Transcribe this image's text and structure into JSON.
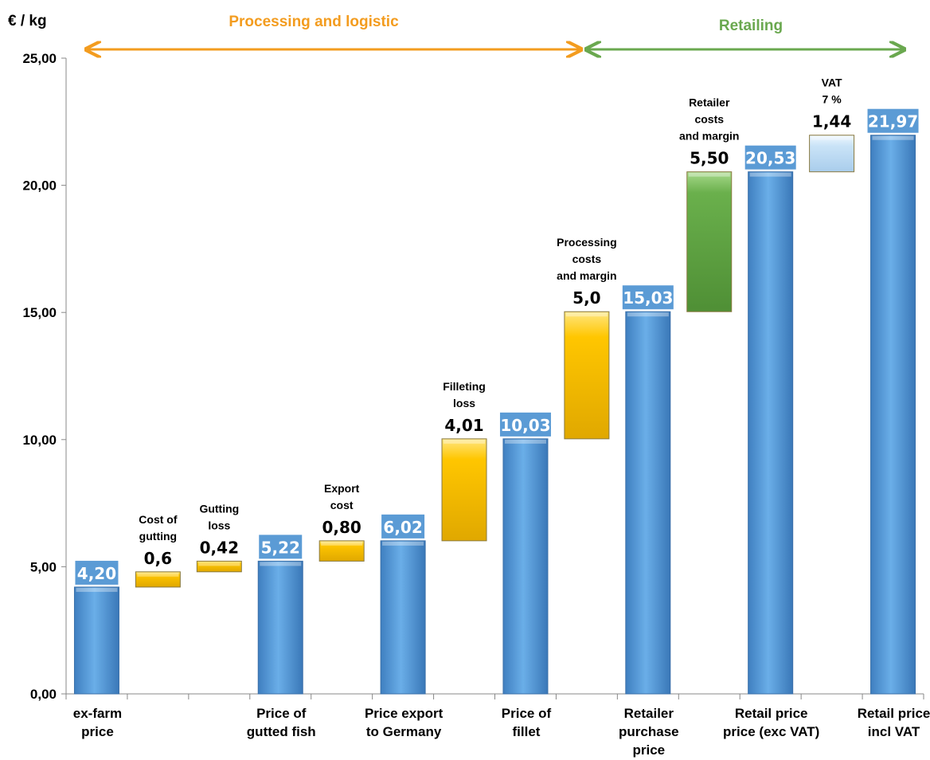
{
  "chart_data": {
    "type": "bar",
    "subtype": "waterfall",
    "ylabel": "€ / kg",
    "ylim": [
      0,
      25
    ],
    "yticks": [
      "0,00",
      "5,00",
      "10,00",
      "15,00",
      "20,00",
      "25,00"
    ],
    "grid": false,
    "sections": [
      {
        "label": "Processing and logistic",
        "color": "#f39c1f"
      },
      {
        "label": "Retailing",
        "color": "#6aa84f"
      }
    ],
    "categories": [
      "ex-farm price",
      "",
      "",
      "Price of gutted fish",
      "",
      "Price export to Germany",
      "",
      "Price of fillet",
      "",
      "Retailer purchase price",
      "",
      "Retail price price (exc VAT)",
      "",
      "Retail price incl VAT"
    ],
    "category_lines": [
      [
        "ex-farm",
        "price"
      ],
      [],
      [],
      [
        "Price of",
        "gutted fish"
      ],
      [],
      [
        "Price export",
        "to Germany"
      ],
      [],
      [
        "Price of",
        "fillet"
      ],
      [],
      [
        "Retailer",
        "purchase",
        "price"
      ],
      [],
      [
        "Retail price",
        "price (exc VAT)"
      ],
      [],
      [
        "Retail price",
        "incl VAT"
      ]
    ],
    "bars": [
      {
        "kind": "total",
        "base": 0,
        "top": 4.2,
        "label": "4,20",
        "note": [],
        "color": "#5ba3e0"
      },
      {
        "kind": "step",
        "base": 4.2,
        "top": 4.8,
        "label": "0,6",
        "note": [
          "Cost of",
          "gutting"
        ],
        "color": "#ffc600"
      },
      {
        "kind": "step",
        "base": 4.8,
        "top": 5.22,
        "label": "0,42",
        "note": [
          "Gutting",
          "loss"
        ],
        "color": "#ffc600"
      },
      {
        "kind": "total",
        "base": 0,
        "top": 5.22,
        "label": "5,22",
        "note": [],
        "color": "#5ba3e0"
      },
      {
        "kind": "step",
        "base": 5.22,
        "top": 6.02,
        "label": "0,80",
        "note": [
          "Export",
          "cost"
        ],
        "color": "#ffc600"
      },
      {
        "kind": "total",
        "base": 0,
        "top": 6.02,
        "label": "6,02",
        "note": [],
        "color": "#5ba3e0"
      },
      {
        "kind": "step",
        "base": 6.02,
        "top": 10.03,
        "label": "4,01",
        "note": [
          "Filleting",
          "loss"
        ],
        "color": "#ffc600"
      },
      {
        "kind": "total",
        "base": 0,
        "top": 10.03,
        "label": "10,03",
        "note": [],
        "color": "#5ba3e0"
      },
      {
        "kind": "step",
        "base": 10.03,
        "top": 15.03,
        "label": "5,0",
        "note": [
          "Processing",
          "costs",
          "and margin"
        ],
        "color": "#ffc600"
      },
      {
        "kind": "total",
        "base": 0,
        "top": 15.03,
        "label": "15,03",
        "note": [],
        "color": "#5ba3e0"
      },
      {
        "kind": "step",
        "base": 15.03,
        "top": 20.53,
        "label": "5,50",
        "note": [
          "Retailer",
          "costs",
          "and margin"
        ],
        "color": "#6ab04c"
      },
      {
        "kind": "total",
        "base": 0,
        "top": 20.53,
        "label": "20,53",
        "note": [],
        "color": "#5ba3e0"
      },
      {
        "kind": "step",
        "base": 20.53,
        "top": 21.97,
        "label": "1,44",
        "note": [
          "VAT",
          "7 %"
        ],
        "color": "#c9e3f7"
      },
      {
        "kind": "total",
        "base": 0,
        "top": 21.97,
        "label": "21,97",
        "note": [],
        "color": "#5ba3e0"
      }
    ]
  }
}
